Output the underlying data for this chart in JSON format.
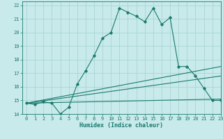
{
  "xlabel": "Humidex (Indice chaleur)",
  "xlim": [
    -0.5,
    23
  ],
  "ylim": [
    14,
    22.3
  ],
  "yticks": [
    14,
    15,
    16,
    17,
    18,
    19,
    20,
    21,
    22
  ],
  "xticks": [
    0,
    1,
    2,
    3,
    4,
    5,
    6,
    7,
    8,
    9,
    10,
    11,
    12,
    13,
    14,
    15,
    16,
    17,
    18,
    19,
    20,
    21,
    22,
    23
  ],
  "bg_color": "#c8eaea",
  "grid_color": "#aad4d4",
  "line_color": "#1a7a6e",
  "line1_x": [
    0,
    1,
    2,
    3,
    4,
    5,
    6,
    7,
    8,
    9,
    10,
    11,
    12,
    13,
    14,
    15,
    16,
    17,
    18,
    19,
    20,
    21,
    22,
    23
  ],
  "line1_y": [
    14.8,
    14.7,
    14.9,
    14.8,
    14.0,
    14.5,
    16.2,
    17.2,
    18.3,
    19.6,
    20.0,
    21.8,
    21.5,
    21.2,
    20.8,
    21.8,
    20.6,
    21.1,
    17.5,
    17.5,
    16.8,
    15.9,
    15.0,
    15.0
  ],
  "line2_x": [
    0,
    23
  ],
  "line2_y": [
    14.8,
    17.5
  ],
  "line3_x": [
    0,
    23
  ],
  "line3_y": [
    14.8,
    16.8
  ],
  "line4_x": [
    0,
    23
  ],
  "line4_y": [
    14.8,
    15.1
  ]
}
